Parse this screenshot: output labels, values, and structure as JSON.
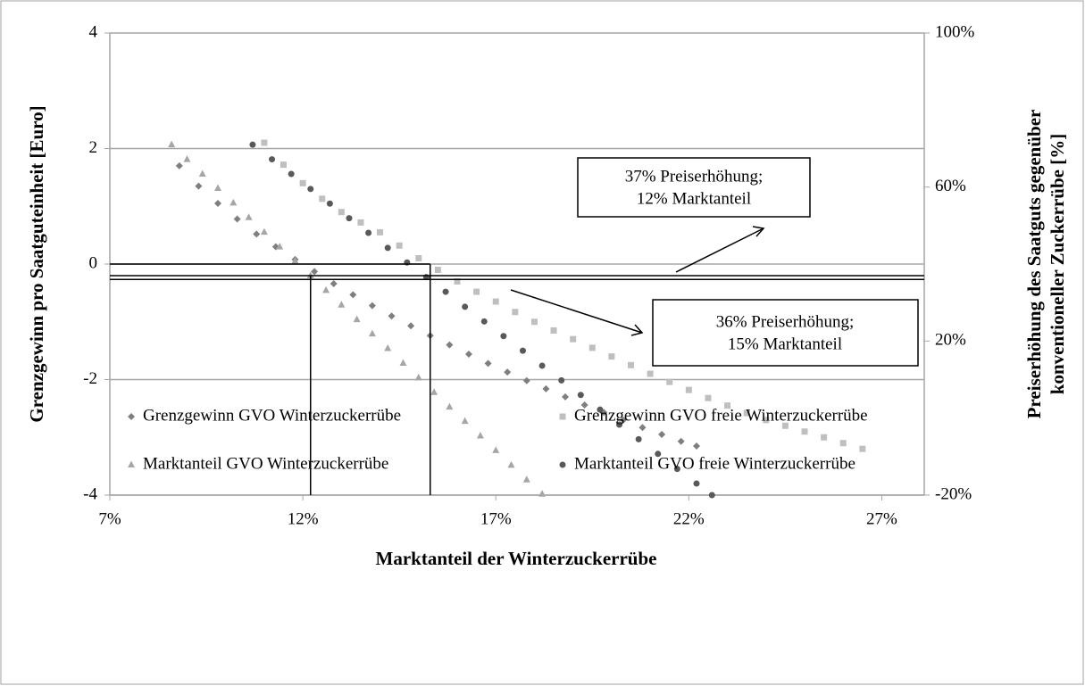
{
  "chart_data": {
    "type": "scatter",
    "x_label": "Marktanteil der Winterzuckerrübe",
    "y_label": "Grenzgewinn pro Saatguteinheit [Euro]",
    "y2_label": [
      "Preiserhöhung des Saatguts gegenüber",
      "konventioneller Zuckerrübe [%]"
    ],
    "xlim": [
      7,
      28.1
    ],
    "xticks": [
      {
        "value": 7,
        "label": "7%"
      },
      {
        "value": 12,
        "label": "12%"
      },
      {
        "value": 17,
        "label": "17%"
      },
      {
        "value": 22,
        "label": "22%"
      },
      {
        "value": 27,
        "label": "27%"
      }
    ],
    "ylim": [
      -4,
      4
    ],
    "yticks": [
      -4,
      -2,
      0,
      2,
      4
    ],
    "y2lim": [
      -20,
      100
    ],
    "y2ticks": [
      {
        "value": -20,
        "label": "-20%"
      },
      {
        "value": 20,
        "label": "20%"
      },
      {
        "value": 60,
        "label": "60%"
      },
      {
        "value": 100,
        "label": "100%"
      }
    ],
    "grid": true,
    "legend": "bottom",
    "series": [
      {
        "name": "Grenzgewinn GVO Winterzuckerrübe",
        "color": "#7f7f7f",
        "marker": "diamond",
        "axis": "y",
        "x": [
          8.8,
          9.3,
          9.8,
          10.3,
          10.8,
          11.3,
          11.8,
          12.3,
          12.8,
          13.3,
          13.8,
          14.3,
          14.8,
          15.3,
          15.8,
          16.3,
          16.8,
          17.3,
          17.8,
          18.3,
          18.8,
          19.3,
          19.8,
          20.3,
          20.8,
          21.3,
          21.8,
          22.2
        ],
        "values": [
          1.7,
          1.35,
          1.05,
          0.78,
          0.52,
          0.3,
          0.08,
          -0.13,
          -0.34,
          -0.53,
          -0.72,
          -0.9,
          -1.07,
          -1.24,
          -1.4,
          -1.56,
          -1.72,
          -1.87,
          -2.02,
          -2.16,
          -2.3,
          -2.44,
          -2.57,
          -2.7,
          -2.83,
          -2.95,
          -3.07,
          -3.15
        ]
      },
      {
        "name": "Grenzgewinn GVO freie Winterzuckerrübe",
        "color": "#bfbfbf",
        "marker": "square",
        "axis": "y",
        "x": [
          11,
          11.5,
          12,
          12.5,
          13,
          13.5,
          14,
          14.5,
          15,
          15.5,
          16,
          16.5,
          17,
          17.5,
          18,
          18.5,
          19,
          19.5,
          20,
          20.5,
          21,
          21.5,
          22,
          22.5,
          23,
          23.5,
          24,
          24.5,
          25,
          25.5,
          26,
          26.5
        ],
        "values": [
          2.1,
          1.72,
          1.4,
          1.13,
          0.9,
          0.72,
          0.55,
          0.32,
          0.1,
          -0.1,
          -0.3,
          -0.48,
          -0.65,
          -0.83,
          -1.0,
          -1.15,
          -1.3,
          -1.45,
          -1.6,
          -1.75,
          -1.9,
          -2.04,
          -2.18,
          -2.32,
          -2.45,
          -2.58,
          -2.7,
          -2.8,
          -2.9,
          -3.0,
          -3.1,
          -3.2
        ]
      },
      {
        "name": "Marktanteil GVO Winterzuckerrübe",
        "color": "#a6a6a6",
        "marker": "triangle",
        "axis": "y2",
        "x": [
          8.6,
          9.0,
          9.4,
          9.8,
          10.2,
          10.6,
          11.0,
          11.4,
          11.8,
          12.2,
          12.6,
          13.0,
          13.4,
          13.8,
          14.2,
          14.6,
          15.0,
          15.4,
          15.8,
          16.2,
          16.6,
          17.0,
          17.4,
          17.8,
          18.2
        ],
        "values": [
          71.0,
          67.2,
          63.4,
          59.7,
          55.9,
          52.1,
          48.3,
          44.5,
          40.8,
          37.0,
          33.2,
          29.4,
          25.6,
          21.9,
          18.1,
          14.3,
          10.5,
          6.7,
          2.9,
          -0.8,
          -4.6,
          -8.4,
          -12.2,
          -16.0,
          -19.7
        ]
      },
      {
        "name": "Marktanteil GVO freie Winterzuckerrübe",
        "color": "#595959",
        "marker": "circle",
        "axis": "y2",
        "x": [
          10.7,
          11.2,
          11.7,
          12.2,
          12.7,
          13.2,
          13.7,
          14.2,
          14.7,
          15.2,
          15.7,
          16.2,
          16.7,
          17.2,
          17.7,
          18.2,
          18.7,
          19.2,
          19.7,
          20.2,
          20.7,
          21.2,
          21.7,
          22.2,
          22.6
        ],
        "values": [
          71.0,
          67.2,
          63.4,
          59.5,
          55.7,
          51.9,
          48.1,
          44.2,
          40.4,
          36.6,
          32.8,
          28.9,
          25.1,
          21.3,
          17.5,
          13.6,
          9.8,
          6.0,
          2.2,
          -1.7,
          -5.5,
          -9.3,
          -13.2,
          -17.0,
          -20.0
        ]
      }
    ],
    "reference_lines": [
      {
        "axis": "y",
        "x": [
          7,
          15.3
        ],
        "y": [
          0,
          0
        ]
      },
      {
        "axis": "y",
        "x": [
          15.3,
          15.3
        ],
        "y": [
          0,
          -4
        ]
      },
      {
        "axis": "y2",
        "x": [
          7,
          28.1
        ],
        "y": [
          37,
          37
        ]
      },
      {
        "axis": "y2",
        "x": [
          7,
          28.1
        ],
        "y": [
          36,
          36
        ]
      },
      {
        "axis": "y2",
        "x": [
          12.2,
          12.2
        ],
        "y": [
          37,
          -20
        ]
      }
    ],
    "annotations": [
      {
        "lines": [
          "37% Preiserhöhung;",
          "12% Marktanteil"
        ]
      },
      {
        "lines": [
          "36% Preiserhöhung;",
          "15% Marktanteil"
        ]
      }
    ]
  }
}
